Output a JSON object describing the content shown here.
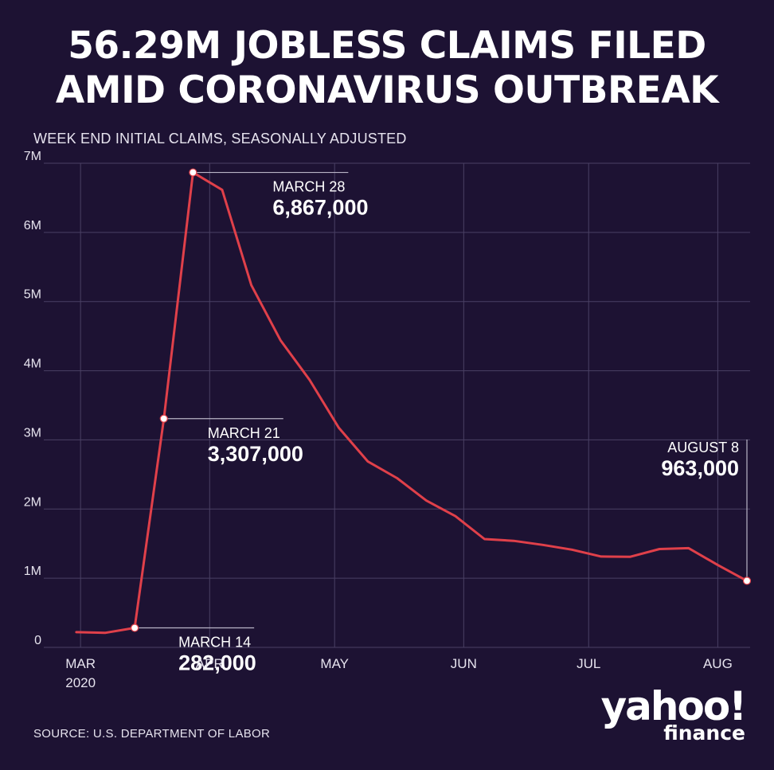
{
  "header": {
    "title_line1": "56.29M JOBLESS CLAIMS FILED",
    "title_line2": "AMID CORONAVIRUS OUTBREAK",
    "subtitle": "WEEK END INITIAL CLAIMS, SEASONALLY ADJUSTED"
  },
  "footer": {
    "source": "SOURCE:  U.S. DEPARTMENT OF LABOR",
    "logo_line1": "yahoo!",
    "logo_line2": "finance"
  },
  "colors": {
    "background": "#1d1233",
    "line": "#e0404a",
    "grid": "#4a4064",
    "text": "#ffffff"
  },
  "chart_data": {
    "type": "line",
    "title": "56.29M JOBLESS CLAIMS FILED AMID CORONAVIRUS OUTBREAK",
    "subtitle": "WEEK END INITIAL CLAIMS, SEASONALLY ADJUSTED",
    "xlabel": "",
    "ylabel": "",
    "x": [
      "2020-02-29",
      "2020-03-07",
      "2020-03-14",
      "2020-03-21",
      "2020-03-28",
      "2020-04-04",
      "2020-04-11",
      "2020-04-18",
      "2020-04-25",
      "2020-05-02",
      "2020-05-09",
      "2020-05-16",
      "2020-05-23",
      "2020-05-30",
      "2020-06-06",
      "2020-06-13",
      "2020-06-20",
      "2020-06-27",
      "2020-07-04",
      "2020-07-11",
      "2020-07-18",
      "2020-07-25",
      "2020-08-01",
      "2020-08-08"
    ],
    "series": [
      {
        "values": [
          220000,
          211000,
          282000,
          3307000,
          6867000,
          6615000,
          5237000,
          4442000,
          3867000,
          3176000,
          2687000,
          2446000,
          2123000,
          1897000,
          1566000,
          1540000,
          1482000,
          1413000,
          1314000,
          1310000,
          1422000,
          1434000,
          1191000,
          963000
        ]
      }
    ],
    "x_ticks": [
      {
        "date": "2020-03-01",
        "label": "MAR",
        "label2": "2020"
      },
      {
        "date": "2020-04-01",
        "label": "APR",
        "label2": ""
      },
      {
        "date": "2020-05-01",
        "label": "MAY",
        "label2": ""
      },
      {
        "date": "2020-06-01",
        "label": "JUN",
        "label2": ""
      },
      {
        "date": "2020-07-01",
        "label": "JUL",
        "label2": ""
      },
      {
        "date": "2020-08-01",
        "label": "AUG",
        "label2": ""
      }
    ],
    "xlim": [
      "2020-02-25",
      "2020-08-08"
    ],
    "ylim": [
      0,
      7000000
    ],
    "y_ticks": [
      {
        "value": 0,
        "label": "0"
      },
      {
        "value": 1000000,
        "label": "1M"
      },
      {
        "value": 2000000,
        "label": "2M"
      },
      {
        "value": 3000000,
        "label": "3M"
      },
      {
        "value": 4000000,
        "label": "4M"
      },
      {
        "value": 5000000,
        "label": "5M"
      },
      {
        "value": 6000000,
        "label": "6M"
      },
      {
        "value": 7000000,
        "label": "7M"
      }
    ],
    "grid": true,
    "annotations": [
      {
        "date": "2020-03-14",
        "value": 282000,
        "label": "MARCH 14",
        "value_label": "282,000"
      },
      {
        "date": "2020-03-21",
        "value": 3307000,
        "label": "MARCH 21",
        "value_label": "3,307,000"
      },
      {
        "date": "2020-03-28",
        "value": 6867000,
        "label": "MARCH 28",
        "value_label": "6,867,000"
      },
      {
        "date": "2020-08-08",
        "value": 963000,
        "label": "AUGUST 8",
        "value_label": "963,000"
      }
    ]
  }
}
